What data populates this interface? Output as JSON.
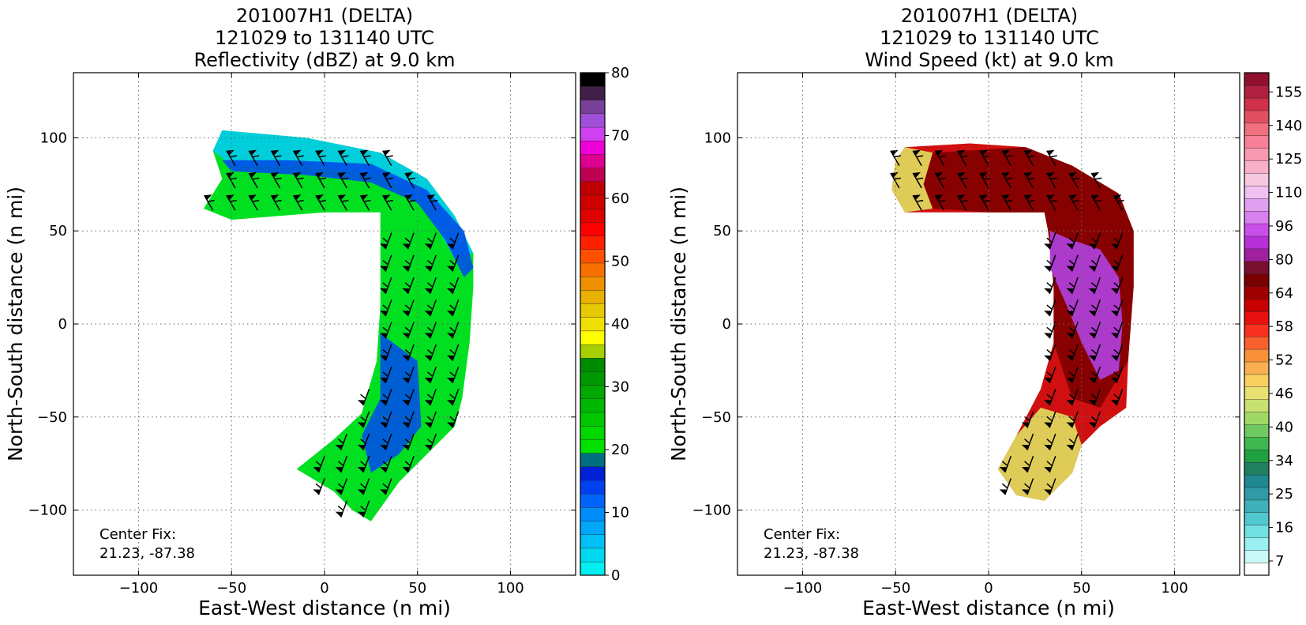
{
  "panels": [
    {
      "title_lines": [
        "201007H1 (DELTA)",
        "121029 to 131140 UTC",
        "Reflectivity (dBZ) at 9.0 km"
      ],
      "center_fix_label": "Center Fix:",
      "center_fix_value": "21.23, -87.38",
      "colorbar": {
        "tick_labels": [
          "0",
          "10",
          "20",
          "30",
          "40",
          "50",
          "60",
          "70",
          "80"
        ],
        "colors": [
          "#00efef",
          "#00d8f2",
          "#00c0f5",
          "#00a6f8",
          "#008cfb",
          "#0064fb",
          "#0040f0",
          "#0020d8",
          "#007080",
          "#00e000",
          "#00d800",
          "#00c800",
          "#00b800",
          "#00a800",
          "#009800",
          "#008c00",
          "#a8d000",
          "#ffff00",
          "#f0e000",
          "#e8c800",
          "#e8b000",
          "#f09000",
          "#f87000",
          "#ff5000",
          "#ff2000",
          "#ff0000",
          "#e00000",
          "#d00000",
          "#c00000",
          "#c00050",
          "#e00090",
          "#f000d8",
          "#d040f0",
          "#a050d8",
          "#784098",
          "#402048",
          "#000000"
        ]
      }
    },
    {
      "title_lines": [
        "201007H1 (DELTA)",
        "121029 to 131140 UTC",
        "Wind Speed (kt) at 9.0 km"
      ],
      "center_fix_label": "Center Fix:",
      "center_fix_value": "21.23, -87.38",
      "colorbar": {
        "tick_labels": [
          "7",
          "16",
          "25",
          "34",
          "40",
          "46",
          "52",
          "58",
          "64",
          "80",
          "96",
          "110",
          "125",
          "140",
          "155"
        ],
        "colors": [
          "#ffffff",
          "#c8f8f8",
          "#98f0f0",
          "#70e0e0",
          "#50c8d0",
          "#40b0b8",
          "#309aa8",
          "#208890",
          "#208060",
          "#20a040",
          "#40b850",
          "#70c860",
          "#a0d868",
          "#c8e070",
          "#e8e070",
          "#f8d060",
          "#f8b050",
          "#f89038",
          "#f86030",
          "#f83020",
          "#e81010",
          "#c80000",
          "#a00000",
          "#780000",
          "#781030",
          "#a020a0",
          "#b830d8",
          "#c850e8",
          "#d880f0",
          "#e0a0f0",
          "#f0c0f0",
          "#f8c8e0",
          "#f8b0c8",
          "#f898b0",
          "#f88098",
          "#f07080",
          "#e05060",
          "#d03048",
          "#b02040",
          "#901030"
        ]
      }
    }
  ],
  "shared_axes": {
    "xlabel": "East-West distance (n mi)",
    "ylabel": "North-South distance (n mi)",
    "x_ticks": [
      -100,
      -50,
      0,
      50,
      100
    ],
    "x_tick_labels": [
      "−100",
      "−50",
      "0",
      "50",
      "100"
    ],
    "y_ticks": [
      100,
      50,
      0,
      -50,
      -100
    ],
    "y_tick_labels": [
      "100",
      "50",
      "0",
      "−50",
      "−100"
    ]
  },
  "chart_data": [
    {
      "type": "heatmap",
      "title": "201007H1 (DELTA) 121029 to 131140 UTC Reflectivity (dBZ) at 9.0 km",
      "field": "Reflectivity (dBZ)",
      "xlabel": "East-West distance (n mi)",
      "ylabel": "North-South distance (n mi)",
      "xlim": [
        -135,
        135
      ],
      "ylim": [
        -135,
        135
      ],
      "grid": true,
      "colorbar_range": [
        0,
        80
      ],
      "annotation": "Center Fix: 21.23, -87.38",
      "echo_region": {
        "outline": [
          [
            -60,
            93
          ],
          [
            -55,
            104
          ],
          [
            -10,
            100
          ],
          [
            30,
            92
          ],
          [
            55,
            78
          ],
          [
            70,
            58
          ],
          [
            80,
            38
          ],
          [
            80,
            20
          ],
          [
            78,
            -10
          ],
          [
            74,
            -40
          ],
          [
            70,
            -55
          ],
          [
            55,
            -70
          ],
          [
            40,
            -85
          ],
          [
            25,
            -106
          ],
          [
            15,
            -100
          ],
          [
            5,
            -90
          ],
          [
            -15,
            -78
          ],
          [
            5,
            -62
          ],
          [
            20,
            -48
          ],
          [
            28,
            -20
          ],
          [
            30,
            10
          ],
          [
            30,
            60
          ],
          [
            0,
            60
          ],
          [
            -50,
            56
          ],
          [
            -65,
            62
          ],
          [
            -55,
            78
          ]
        ],
        "bands": [
          {
            "value_dbz": 5,
            "path": [
              [
                -60,
                93
              ],
              [
                -55,
                104
              ],
              [
                -10,
                100
              ],
              [
                30,
                92
              ],
              [
                55,
                78
              ],
              [
                70,
                58
              ],
              [
                80,
                38
              ],
              [
                70,
                35
              ],
              [
                55,
                62
              ],
              [
                30,
                80
              ],
              [
                -10,
                85
              ],
              [
                -50,
                85
              ]
            ]
          },
          {
            "value_dbz": 12,
            "path": [
              [
                -50,
                82
              ],
              [
                -10,
                80
              ],
              [
                25,
                76
              ],
              [
                50,
                65
              ],
              [
                65,
                45
              ],
              [
                75,
                25
              ],
              [
                80,
                30
              ],
              [
                75,
                50
              ],
              [
                55,
                72
              ],
              [
                25,
                86
              ],
              [
                -20,
                88
              ],
              [
                -55,
                88
              ]
            ]
          },
          {
            "value_dbz": 12,
            "path": [
              [
                30,
                -5
              ],
              [
                50,
                -20
              ],
              [
                52,
                -55
              ],
              [
                40,
                -70
              ],
              [
                25,
                -80
              ],
              [
                20,
                -60
              ],
              [
                30,
                -40
              ]
            ]
          }
        ]
      },
      "barbs_present": true
    },
    {
      "type": "heatmap",
      "title": "201007H1 (DELTA) 121029 to 131140 UTC Wind Speed (kt) at 9.0 km",
      "field": "Wind Speed (kt)",
      "xlabel": "East-West distance (n mi)",
      "ylabel": "North-South distance (n mi)",
      "xlim": [
        -135,
        135
      ],
      "ylim": [
        -135,
        135
      ],
      "grid": true,
      "colorbar_range": [
        7,
        155
      ],
      "annotation": "Center Fix: 21.23, -87.38",
      "speed_region": {
        "outline": [
          [
            -50,
            88
          ],
          [
            -45,
            95
          ],
          [
            -10,
            97
          ],
          [
            20,
            95
          ],
          [
            45,
            85
          ],
          [
            70,
            70
          ],
          [
            78,
            50
          ],
          [
            78,
            20
          ],
          [
            75,
            -20
          ],
          [
            74,
            -45
          ],
          [
            60,
            -55
          ],
          [
            50,
            -65
          ],
          [
            45,
            -80
          ],
          [
            30,
            -95
          ],
          [
            15,
            -92
          ],
          [
            5,
            -78
          ],
          [
            15,
            -60
          ],
          [
            28,
            -35
          ],
          [
            35,
            -10
          ],
          [
            35,
            20
          ],
          [
            32,
            50
          ],
          [
            30,
            60
          ],
          [
            0,
            60
          ],
          [
            -45,
            60
          ],
          [
            -52,
            72
          ]
        ],
        "bands": [
          {
            "value_kt": 44,
            "path": [
              [
                -50,
                88
              ],
              [
                -45,
                95
              ],
              [
                -30,
                92
              ],
              [
                -35,
                75
              ],
              [
                -30,
                62
              ],
              [
                -45,
                60
              ],
              [
                -52,
                72
              ]
            ]
          },
          {
            "value_kt": 58,
            "path": [
              [
                -30,
                92
              ],
              [
                20,
                95
              ],
              [
                45,
                85
              ],
              [
                70,
                70
              ],
              [
                78,
                50
              ],
              [
                78,
                20
              ],
              [
                75,
                -20
              ],
              [
                60,
                -45
              ],
              [
                45,
                -40
              ],
              [
                35,
                -10
              ],
              [
                35,
                20
              ],
              [
                32,
                50
              ],
              [
                30,
                60
              ],
              [
                0,
                60
              ],
              [
                -30,
                62
              ],
              [
                -35,
                75
              ]
            ]
          },
          {
            "value_kt": 72,
            "path": [
              [
                33,
                50
              ],
              [
                45,
                45
              ],
              [
                60,
                40
              ],
              [
                70,
                25
              ],
              [
                72,
                0
              ],
              [
                70,
                -25
              ],
              [
                60,
                -30
              ],
              [
                50,
                -10
              ],
              [
                42,
                10
              ],
              [
                33,
                30
              ]
            ]
          },
          {
            "value_kt": 46,
            "path": [
              [
                5,
                -78
              ],
              [
                15,
                -60
              ],
              [
                28,
                -45
              ],
              [
                45,
                -50
              ],
              [
                50,
                -65
              ],
              [
                45,
                -80
              ],
              [
                30,
                -95
              ],
              [
                15,
                -92
              ]
            ]
          }
        ]
      },
      "barbs_present": true
    }
  ]
}
